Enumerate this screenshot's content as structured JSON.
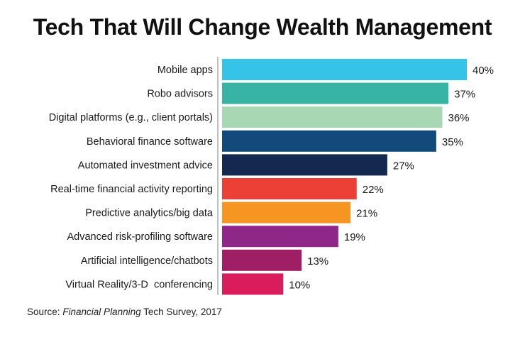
{
  "chart_data": {
    "type": "bar",
    "orientation": "horizontal",
    "title": "Tech That Will Change Wealth Management",
    "categories": [
      "Mobile apps",
      "Robo advisors",
      "Digital platforms (e.g., client portals)",
      "Behavioral finance software",
      "Automated investment advice",
      "Real-time financial activity reporting",
      "Predictive analytics/big data",
      "Advanced risk-profiling software",
      "Artificial intelligence/chatbots",
      "Virtual Reality/3-D  conferencing"
    ],
    "values": [
      40,
      37,
      36,
      35,
      27,
      22,
      21,
      19,
      13,
      10
    ],
    "data_labels": [
      "40%",
      "37%",
      "36%",
      "35%",
      "27%",
      "22%",
      "21%",
      "19%",
      "13%",
      "10%"
    ],
    "colors": [
      "#35c4e7",
      "#38b4a5",
      "#a8d8b3",
      "#134a7c",
      "#13294f",
      "#ec4037",
      "#f69521",
      "#8e2788",
      "#9e1f63",
      "#da1c5c"
    ],
    "unit": "%",
    "xlim": [
      0,
      40
    ],
    "grid": false,
    "legend": "none"
  },
  "source": {
    "prefix": "Source: ",
    "publication": "Financial Planning",
    "suffix": " Tech Survey, 2017"
  }
}
